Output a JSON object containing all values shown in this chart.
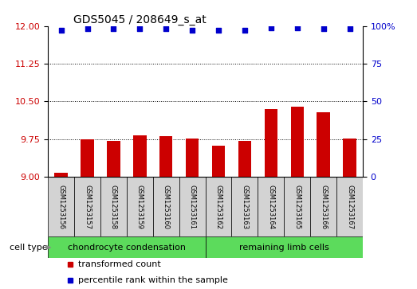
{
  "title": "GDS5045 / 208649_s_at",
  "samples": [
    "GSM1253156",
    "GSM1253157",
    "GSM1253158",
    "GSM1253159",
    "GSM1253160",
    "GSM1253161",
    "GSM1253162",
    "GSM1253163",
    "GSM1253164",
    "GSM1253165",
    "GSM1253166",
    "GSM1253167"
  ],
  "bar_values": [
    9.09,
    9.75,
    9.72,
    9.82,
    9.81,
    9.77,
    9.62,
    9.72,
    10.35,
    10.4,
    10.28,
    9.76
  ],
  "dot_values": [
    97,
    98,
    98,
    98,
    98,
    97,
    97,
    97,
    99,
    99,
    98,
    98
  ],
  "ylim_left": [
    9,
    12
  ],
  "ylim_right": [
    0,
    100
  ],
  "yticks_left": [
    9,
    9.75,
    10.5,
    11.25,
    12
  ],
  "yticks_right": [
    0,
    25,
    50,
    75,
    100
  ],
  "bar_color": "#cc0000",
  "dot_color": "#0000cc",
  "bar_base": 9,
  "groups": [
    {
      "label": "chondrocyte condensation",
      "start": 0,
      "end": 6,
      "color": "#5cdb5c"
    },
    {
      "label": "remaining limb cells",
      "start": 6,
      "end": 12,
      "color": "#5cdb5c"
    }
  ],
  "cell_type_label": "cell type",
  "legend_items": [
    {
      "label": "transformed count",
      "color": "#cc0000"
    },
    {
      "label": "percentile rank within the sample",
      "color": "#0000cc"
    }
  ],
  "sample_bg_color": "#d3d3d3",
  "title_fontsize": 10,
  "tick_fontsize": 8,
  "sample_fontsize": 6,
  "group_fontsize": 8,
  "legend_fontsize": 8
}
